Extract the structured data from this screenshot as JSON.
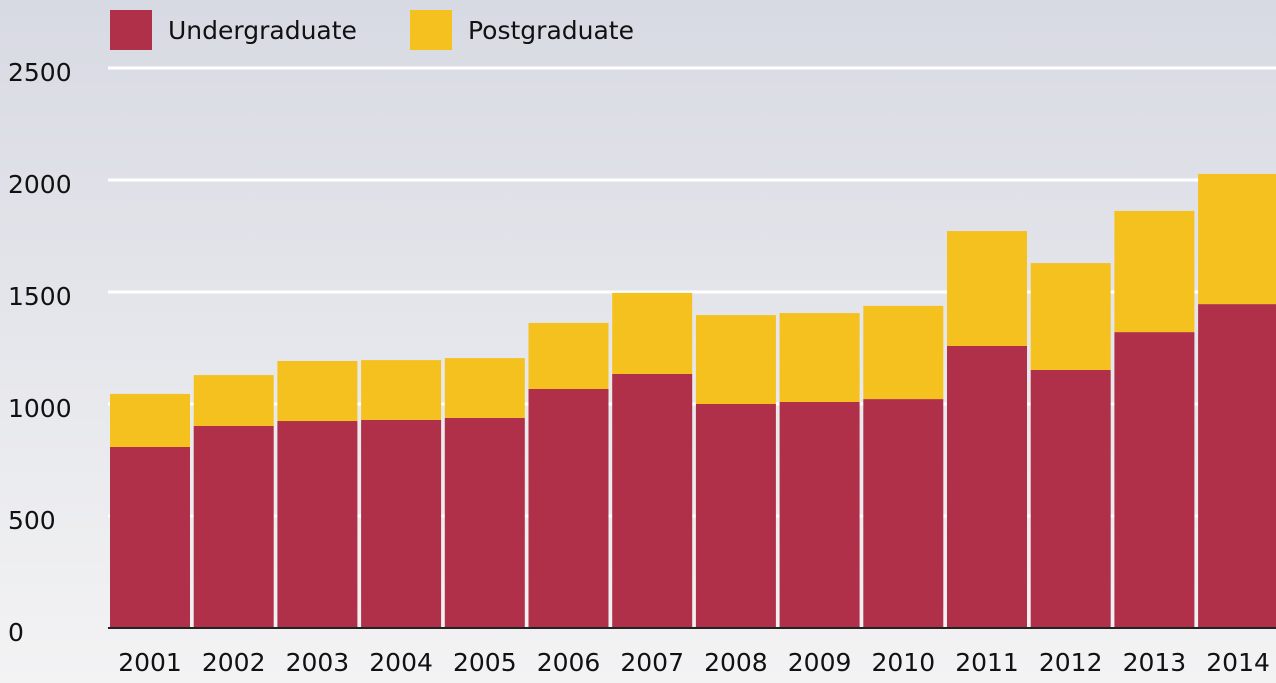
{
  "chart_data": {
    "type": "stacked_bar",
    "categories": [
      "2001",
      "2002",
      "2003",
      "2004",
      "2005",
      "2006",
      "2007",
      "2008",
      "2009",
      "2010",
      "2011",
      "2012",
      "2013",
      "2014"
    ],
    "series": [
      {
        "name": "Undergraduate",
        "color": "#b0304a",
        "values": [
          808,
          902,
          924,
          929,
          938,
          1067,
          1134,
          1000,
          1009,
          1022,
          1259,
          1152,
          1321,
          1446
        ]
      },
      {
        "name": "Postgraduate",
        "color": "#f5c11e",
        "values": [
          237,
          227,
          268,
          267,
          267,
          295,
          362,
          397,
          397,
          416,
          513,
          477,
          541,
          581
        ]
      }
    ],
    "ylim": [
      0,
      2500
    ],
    "yticks": [
      0,
      500,
      1000,
      1500,
      2000,
      2500
    ],
    "grid": true,
    "legend": "top"
  }
}
